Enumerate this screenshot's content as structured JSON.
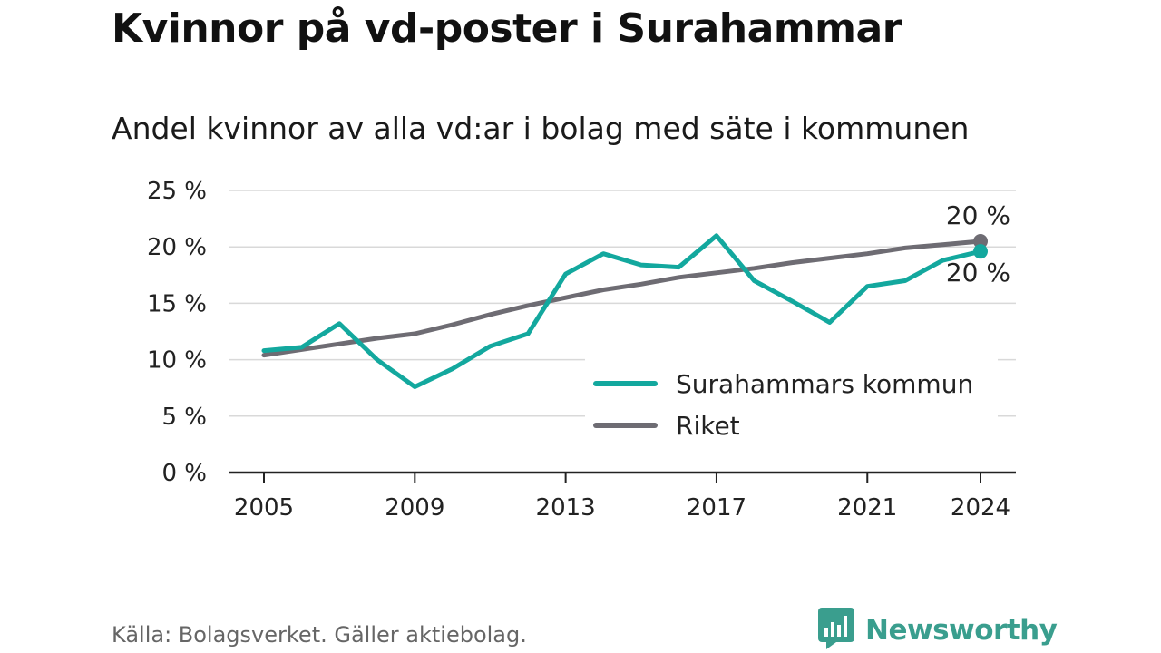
{
  "header": {
    "title": "Kvinnor på vd-poster i Surahammar",
    "subtitle": "Andel kvinnor av alla vd:ar i bolag med säte i kommunen"
  },
  "footer": {
    "source": "Källa: Bolagsverket. Gäller aktiebolag.",
    "brand": "Newsworthy",
    "brand_icon": "bar-chart-speech-bubble-icon"
  },
  "colors": {
    "surahammar": "#13a89e",
    "riket": "#6e6c73",
    "grid": "#d9d9d9",
    "axis": "#222222",
    "brand": "#3a9e8e"
  },
  "chart_data": {
    "type": "line",
    "title": "Kvinnor på vd-poster i Surahammar",
    "subtitle": "Andel kvinnor av alla vd:ar i bolag med säte i kommunen",
    "x": [
      2005,
      2006,
      2007,
      2008,
      2009,
      2010,
      2011,
      2012,
      2013,
      2014,
      2015,
      2016,
      2017,
      2018,
      2019,
      2020,
      2021,
      2022,
      2023,
      2024
    ],
    "x_ticks": [
      "2005",
      "2009",
      "2013",
      "2017",
      "2021",
      "2024"
    ],
    "y_ticks": [
      "0 %",
      "5 %",
      "10 %",
      "15 %",
      "20 %",
      "25 %"
    ],
    "ylim": [
      0,
      25
    ],
    "grid": true,
    "legend_position": "bottom-right",
    "series": [
      {
        "name": "Surahammars kommun",
        "values": [
          10.8,
          11.1,
          13.2,
          10.0,
          7.6,
          9.2,
          11.2,
          12.3,
          17.6,
          19.4,
          18.4,
          18.2,
          21.0,
          17.0,
          15.2,
          13.3,
          16.5,
          17.0,
          18.8,
          19.6
        ],
        "end_label": "20 %"
      },
      {
        "name": "Riket",
        "values": [
          10.4,
          10.9,
          11.4,
          11.9,
          12.3,
          13.1,
          14.0,
          14.8,
          15.5,
          16.2,
          16.7,
          17.3,
          17.7,
          18.1,
          18.6,
          19.0,
          19.4,
          19.9,
          20.2,
          20.5
        ],
        "end_label": "20 %"
      }
    ]
  }
}
